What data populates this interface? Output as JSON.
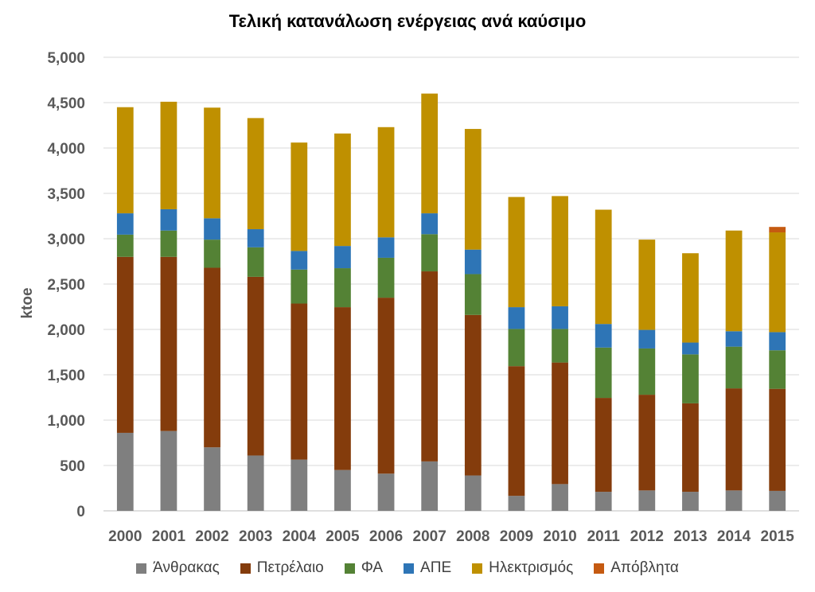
{
  "chart_data": {
    "type": "bar",
    "stacked": true,
    "title": "Τελική κατανάλωση ενέργειας ανά καύσιμο",
    "xlabel": "",
    "ylabel": "ktoe",
    "ylim": [
      0,
      5000
    ],
    "yticks": [
      0,
      500,
      1000,
      1500,
      2000,
      2500,
      3000,
      3500,
      4000,
      4500,
      5000
    ],
    "ytick_labels": [
      "0",
      "500",
      "1,000",
      "1,500",
      "2,000",
      "2,500",
      "3,000",
      "3,500",
      "4,000",
      "4,500",
      "5,000"
    ],
    "grid": true,
    "legend_position": "bottom",
    "categories": [
      "2000",
      "2001",
      "2002",
      "2003",
      "2004",
      "2005",
      "2006",
      "2007",
      "2008",
      "2009",
      "2010",
      "2011",
      "2012",
      "2013",
      "2014",
      "2015"
    ],
    "series": [
      {
        "name": "Άνθρακας",
        "color": "#7f7f7f",
        "values": [
          860,
          880,
          700,
          610,
          565,
          450,
          410,
          545,
          390,
          165,
          295,
          210,
          225,
          210,
          225,
          220
        ]
      },
      {
        "name": "Πετρέλαιο",
        "color": "#843c0c",
        "values": [
          1940,
          1920,
          1980,
          1970,
          1720,
          1795,
          1940,
          2095,
          1770,
          1430,
          1340,
          1035,
          1055,
          975,
          1125,
          1125
        ]
      },
      {
        "name": "ΦΑ",
        "color": "#548235",
        "values": [
          245,
          290,
          310,
          325,
          375,
          430,
          440,
          410,
          450,
          410,
          370,
          555,
          510,
          540,
          460,
          425
        ]
      },
      {
        "name": "ΑΠΕ",
        "color": "#2e75b6",
        "values": [
          235,
          235,
          235,
          200,
          205,
          245,
          225,
          230,
          270,
          240,
          250,
          260,
          205,
          130,
          170,
          200
        ]
      },
      {
        "name": "Ηλεκτρισμός",
        "color": "#bf9000",
        "values": [
          1170,
          1185,
          1220,
          1225,
          1195,
          1240,
          1215,
          1320,
          1330,
          1215,
          1215,
          1260,
          995,
          985,
          1110,
          1100
        ]
      },
      {
        "name": "Απόβλητα",
        "color": "#c55a11",
        "values": [
          0,
          0,
          0,
          0,
          0,
          0,
          0,
          0,
          0,
          0,
          0,
          0,
          0,
          0,
          0,
          60
        ]
      }
    ]
  }
}
